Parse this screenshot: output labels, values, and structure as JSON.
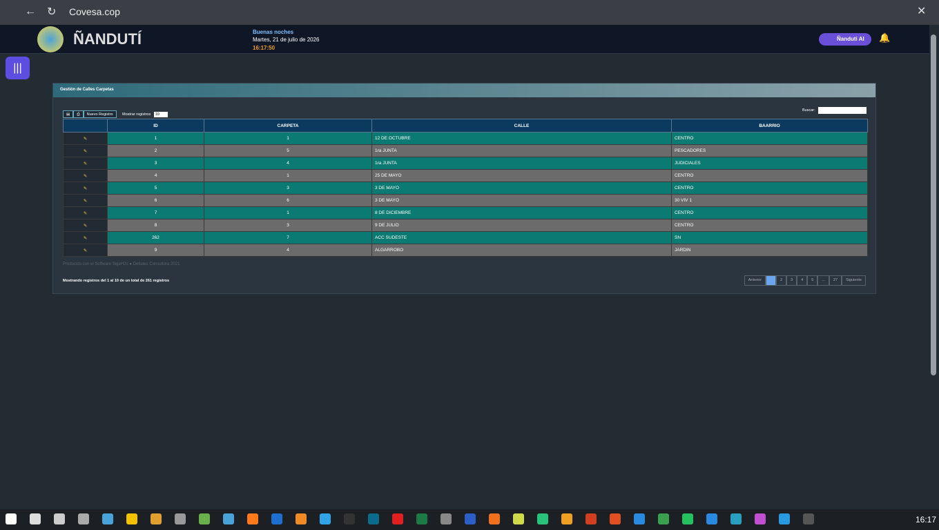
{
  "browser": {
    "address": "Covesa.cop"
  },
  "header": {
    "brand": "ÑANDUTÍ",
    "greeting": "Buenas noches",
    "date": "Martes, 21 de julio de 2026",
    "time": "16:17:50",
    "ai_button": "Ñanduti AI"
  },
  "panel": {
    "title": "Gestión de Calles Carpetas",
    "toolbar": {
      "new_button": "Nuevo Registro",
      "show_label": "Mostrar registros",
      "show_value": "10",
      "search_label": "Buscar:"
    },
    "table": {
      "columns": [
        "ID",
        "CARPETA",
        "CALLE",
        "BAARRIO"
      ],
      "rows": [
        [
          1,
          1,
          "12 DE OCTUBRE",
          "CENTRO"
        ],
        [
          2,
          5,
          "1ra JUNTA",
          "PESCADORES"
        ],
        [
          3,
          4,
          "1ra JUNTA",
          "JUDICIALES"
        ],
        [
          4,
          1,
          "25 DE MAYO",
          "CENTRO"
        ],
        [
          5,
          3,
          "3 DE MAYO",
          "CENTRO"
        ],
        [
          6,
          6,
          "3 DE MAYO",
          "30 VIV 1"
        ],
        [
          7,
          1,
          "8 DE DICIEMBRE",
          "CENTRO"
        ],
        [
          8,
          3,
          "9 DE JULIO",
          "CENTRO"
        ],
        [
          262,
          7,
          "ACC SUDESTE",
          "SN"
        ],
        [
          9,
          4,
          "ALGARROBO",
          "JARDIN"
        ]
      ]
    },
    "credit": {
      "software": "Producido con el Software SigaH2o",
      "company": "Deltatec Consultora 2021"
    },
    "info": "Mostrando registros del 1 al 10 de un total de 261 registros",
    "pagination": [
      "Anterior",
      "1",
      "2",
      "3",
      "4",
      "5",
      "...",
      "27",
      "Siguiente"
    ]
  },
  "taskbar": {
    "clock": "16:17"
  }
}
